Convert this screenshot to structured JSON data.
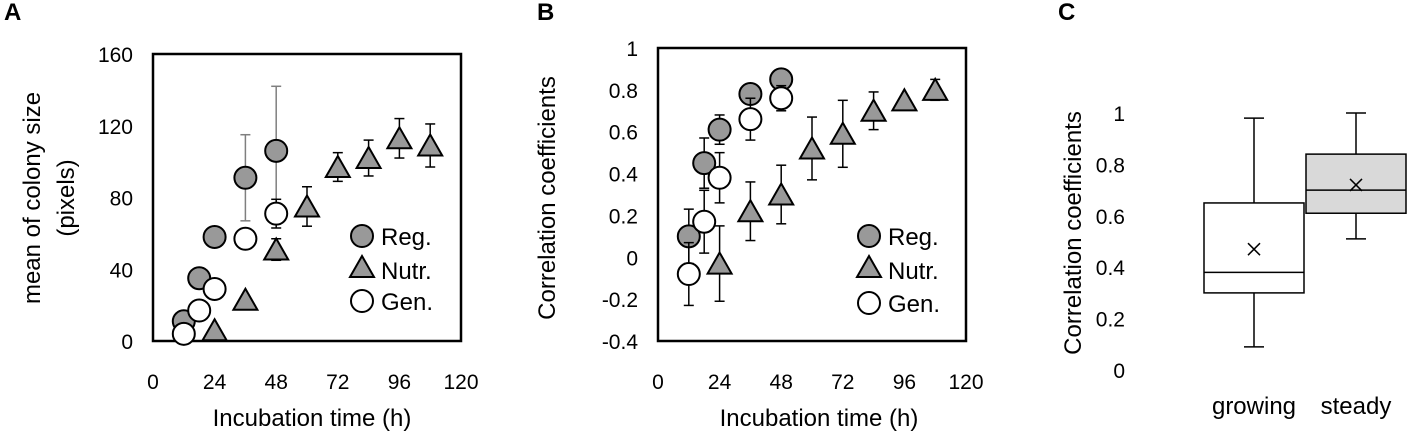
{
  "colors": {
    "reg_fill": "#999999",
    "nutr_fill": "#999999",
    "gen_fill": "#ffffff",
    "marker_stroke": "#000000",
    "errorbar_reg": "#7f7f7f",
    "errorbar_other": "#000000",
    "box_growing": "#ffffff",
    "box_steady": "#d9d9d9"
  },
  "chart_data": [
    {
      "panel": "A",
      "type": "scatter",
      "xlabel": "Incubation time (h)",
      "ylabel_lines": [
        "mean of colony size",
        "(pixels)"
      ],
      "xlim": [
        0,
        120
      ],
      "ylim": [
        0,
        160
      ],
      "xticks": [
        0,
        24,
        48,
        72,
        96,
        120
      ],
      "yticks": [
        0,
        40,
        80,
        120,
        160
      ],
      "xtick_labels": [
        "0",
        "24",
        "48",
        "72",
        "96",
        "120"
      ],
      "ytick_labels": [
        "0",
        "40",
        "80",
        "120",
        "160"
      ],
      "legend_position": "right-middle",
      "series": [
        {
          "name": "Reg.",
          "marker": "circle",
          "fill": "gray",
          "x": [
            12,
            18,
            24,
            36,
            48
          ],
          "y": [
            11,
            35,
            58,
            91,
            106
          ],
          "err": [
            0,
            0,
            0,
            24,
            36
          ]
        },
        {
          "name": "Nutr.",
          "marker": "triangle",
          "fill": "gray",
          "x": [
            24,
            36,
            48,
            60,
            72,
            84,
            96,
            108
          ],
          "y": [
            6,
            23,
            51,
            75,
            97,
            102,
            113,
            109
          ],
          "err": [
            0,
            0,
            6,
            11,
            8,
            10,
            11,
            12
          ]
        },
        {
          "name": "Gen.",
          "marker": "circle",
          "fill": "white",
          "x": [
            12,
            18,
            24,
            36,
            48
          ],
          "y": [
            4,
            17,
            29,
            57,
            71
          ],
          "err": [
            0,
            0,
            0,
            0,
            8
          ]
        }
      ]
    },
    {
      "panel": "B",
      "type": "scatter",
      "xlabel": "Incubation time (h)",
      "ylabel": "Correlation coefficients",
      "xlim": [
        0,
        120
      ],
      "ylim": [
        -0.4,
        1
      ],
      "xticks": [
        0,
        24,
        48,
        72,
        96,
        120
      ],
      "yticks": [
        -0.4,
        -0.2,
        0,
        0.2,
        0.4,
        0.6,
        0.8,
        1
      ],
      "xtick_labels": [
        "0",
        "24",
        "48",
        "72",
        "96",
        "120"
      ],
      "ytick_labels": [
        "-0.4",
        "-0.2",
        "0",
        "0.2",
        "0.4",
        "0.6",
        "0.8",
        "1"
      ],
      "legend_position": "bottom-right",
      "series": [
        {
          "name": "Reg.",
          "marker": "circle",
          "fill": "gray",
          "x": [
            12,
            18,
            24,
            36,
            48
          ],
          "y": [
            0.1,
            0.45,
            0.61,
            0.78,
            0.85
          ],
          "err": [
            0.13,
            0.12,
            0.07,
            0,
            0
          ]
        },
        {
          "name": "Nutr.",
          "marker": "triangle",
          "fill": "gray",
          "x": [
            24,
            36,
            48,
            60,
            72,
            84,
            96,
            108
          ],
          "y": [
            -0.03,
            0.22,
            0.3,
            0.52,
            0.59,
            0.7,
            0.75,
            0.8
          ],
          "err": [
            0.18,
            0.14,
            0.14,
            0.15,
            0.16,
            0.09,
            0,
            0.05
          ]
        },
        {
          "name": "Gen.",
          "marker": "circle",
          "fill": "white",
          "x": [
            12,
            18,
            24,
            36,
            48
          ],
          "y": [
            -0.08,
            0.17,
            0.38,
            0.66,
            0.76
          ],
          "err": [
            0.15,
            0.15,
            0.12,
            0.1,
            0.06
          ]
        }
      ]
    },
    {
      "panel": "C",
      "type": "box",
      "ylabel": "Correlation coefficients",
      "ylim": [
        0,
        1
      ],
      "yticks": [
        0,
        0.2,
        0.4,
        0.6,
        0.8,
        1
      ],
      "ytick_labels": [
        "0",
        "0.2",
        "0.4",
        "0.6",
        "0.8",
        "1"
      ],
      "categories": [
        "growing",
        "steady"
      ],
      "boxes": [
        {
          "name": "growing",
          "min": 0.09,
          "q1": 0.3,
          "median": 0.38,
          "q3": 0.65,
          "max": 0.98,
          "mean": 0.47
        },
        {
          "name": "steady",
          "min": 0.51,
          "q1": 0.61,
          "median": 0.7,
          "q3": 0.84,
          "max": 1.0,
          "mean": 0.72
        }
      ]
    }
  ]
}
